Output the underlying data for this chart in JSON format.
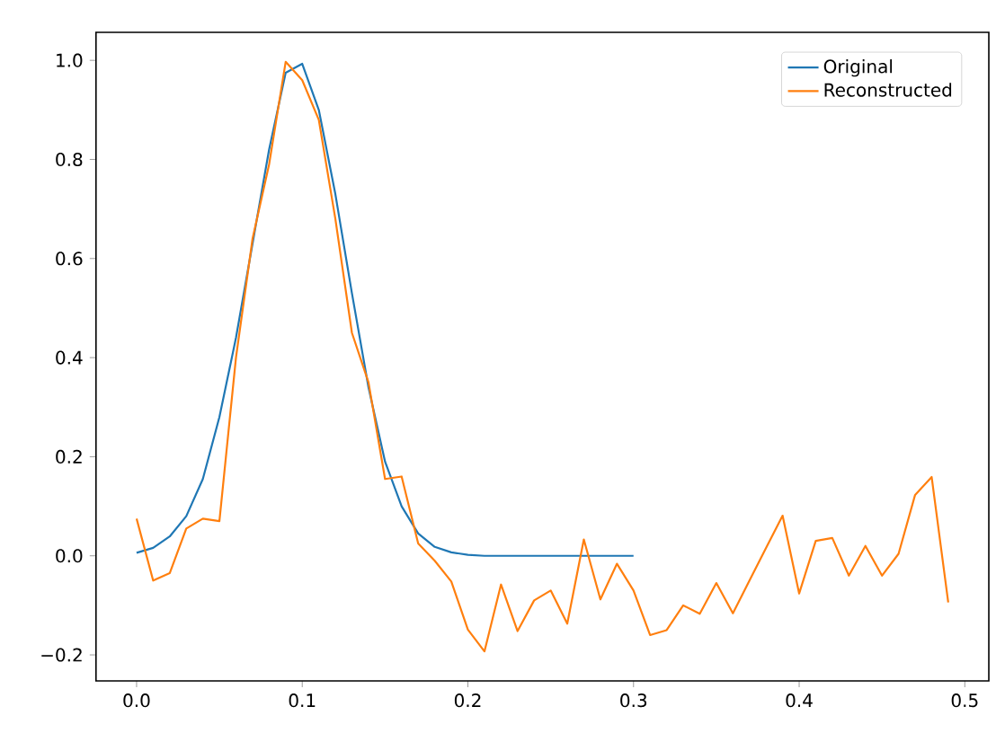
{
  "chart_data": {
    "type": "line",
    "series": [
      {
        "name": "Original",
        "color": "#1f77b4",
        "x": [
          0.0,
          0.01,
          0.02,
          0.03,
          0.04,
          0.05,
          0.06,
          0.07,
          0.08,
          0.09,
          0.1,
          0.11,
          0.12,
          0.13,
          0.14,
          0.15,
          0.16,
          0.17,
          0.18,
          0.19,
          0.2,
          0.21,
          0.22,
          0.23,
          0.24,
          0.25,
          0.26,
          0.27,
          0.28,
          0.29,
          0.3
        ],
        "values": [
          0.006,
          0.016,
          0.039,
          0.08,
          0.155,
          0.28,
          0.44,
          0.63,
          0.82,
          0.975,
          0.993,
          0.9,
          0.73,
          0.53,
          0.34,
          0.19,
          0.1,
          0.045,
          0.018,
          0.007,
          0.002,
          0.0,
          0.0,
          0.0,
          0.0,
          0.0,
          0.0,
          0.0,
          0.0,
          0.0,
          0.0
        ]
      },
      {
        "name": "Reconstructed",
        "color": "#ff7f0e",
        "x": [
          0.0,
          0.01,
          0.02,
          0.03,
          0.04,
          0.05,
          0.06,
          0.07,
          0.08,
          0.09,
          0.1,
          0.11,
          0.12,
          0.13,
          0.14,
          0.15,
          0.16,
          0.17,
          0.18,
          0.19,
          0.2,
          0.21,
          0.22,
          0.23,
          0.24,
          0.25,
          0.26,
          0.27,
          0.28,
          0.29,
          0.3,
          0.31,
          0.32,
          0.33,
          0.34,
          0.35,
          0.36,
          0.37,
          0.38,
          0.39,
          0.4,
          0.41,
          0.42,
          0.43,
          0.44,
          0.45,
          0.46,
          0.47,
          0.48,
          0.49
        ],
        "values": [
          0.075,
          -0.05,
          -0.035,
          0.055,
          0.075,
          0.07,
          0.4,
          0.64,
          0.79,
          0.997,
          0.96,
          0.88,
          0.68,
          0.45,
          0.35,
          0.155,
          0.16,
          0.025,
          -0.01,
          -0.052,
          -0.149,
          -0.193,
          -0.058,
          -0.152,
          -0.09,
          -0.07,
          -0.137,
          0.033,
          -0.088,
          -0.016,
          -0.07,
          -0.16,
          -0.15,
          -0.1,
          -0.117,
          -0.055,
          -0.116,
          -0.05,
          0.016,
          0.081,
          -0.076,
          0.03,
          0.036,
          -0.04,
          0.02,
          -0.04,
          0.004,
          0.123,
          0.159,
          -0.094
        ]
      }
    ],
    "xlim": [
      -0.0245,
      0.5145
    ],
    "ylim": [
      -0.2525,
      1.0565
    ],
    "xticks": [
      {
        "value": 0.0,
        "label": "0.0"
      },
      {
        "value": 0.1,
        "label": "0.1"
      },
      {
        "value": 0.2,
        "label": "0.2"
      },
      {
        "value": 0.3,
        "label": "0.3"
      },
      {
        "value": 0.4,
        "label": "0.4"
      },
      {
        "value": 0.5,
        "label": "0.5"
      }
    ],
    "yticks": [
      {
        "value": -0.2,
        "label": "−0.2"
      },
      {
        "value": 0.0,
        "label": "0.0"
      },
      {
        "value": 0.2,
        "label": "0.2"
      },
      {
        "value": 0.4,
        "label": "0.4"
      },
      {
        "value": 0.6,
        "label": "0.6"
      },
      {
        "value": 0.8,
        "label": "0.8"
      },
      {
        "value": 1.0,
        "label": "1.0"
      }
    ],
    "legend": "top right",
    "grid": false,
    "marker": "none",
    "line_style": "solid"
  }
}
